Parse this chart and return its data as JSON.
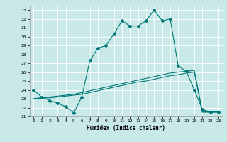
{
  "xlabel": "Humidex (Indice chaleur)",
  "xlim": [
    -0.5,
    23.5
  ],
  "ylim": [
    21,
    33.5
  ],
  "yticks": [
    21,
    22,
    23,
    24,
    25,
    26,
    27,
    28,
    29,
    30,
    31,
    32,
    33
  ],
  "xticks": [
    0,
    1,
    2,
    3,
    4,
    5,
    6,
    7,
    8,
    9,
    10,
    11,
    12,
    13,
    14,
    15,
    16,
    17,
    18,
    19,
    20,
    21,
    22,
    23
  ],
  "background_color": "#c9e9e9",
  "grid_color": "#ffffff",
  "line_color": "#007878",
  "line1_x": [
    0,
    1,
    2,
    3,
    4,
    5,
    6,
    7,
    8,
    9,
    10,
    11,
    12,
    13,
    14,
    15,
    16,
    17,
    18,
    19,
    20,
    21,
    22,
    23
  ],
  "line1_y": [
    24.0,
    23.2,
    22.8,
    22.5,
    22.1,
    21.4,
    23.2,
    27.3,
    28.7,
    29.0,
    30.3,
    31.8,
    31.2,
    31.2,
    31.8,
    33.0,
    31.8,
    32.0,
    26.7,
    26.1,
    24.0,
    21.8,
    21.5,
    21.5
  ],
  "line2_x": [
    0,
    1,
    2,
    3,
    4,
    5,
    6,
    7,
    8,
    9,
    10,
    11,
    12,
    13,
    14,
    15,
    16,
    17,
    18,
    19,
    20,
    21,
    22,
    23
  ],
  "line2_y": [
    23.0,
    23.1,
    23.2,
    23.3,
    23.4,
    23.5,
    23.7,
    23.9,
    24.1,
    24.3,
    24.5,
    24.7,
    24.9,
    25.1,
    25.3,
    25.5,
    25.7,
    25.9,
    26.0,
    26.1,
    26.2,
    21.5,
    21.5,
    21.5
  ],
  "line3_x": [
    0,
    1,
    2,
    3,
    4,
    5,
    6,
    7,
    8,
    9,
    10,
    11,
    12,
    13,
    14,
    15,
    16,
    17,
    18,
    19,
    20,
    21,
    22,
    23
  ],
  "line3_y": [
    23.0,
    23.1,
    23.1,
    23.2,
    23.3,
    23.4,
    23.5,
    23.7,
    23.9,
    24.1,
    24.3,
    24.5,
    24.7,
    24.9,
    25.0,
    25.2,
    25.4,
    25.6,
    25.7,
    25.9,
    26.0,
    21.5,
    21.5,
    21.5
  ]
}
